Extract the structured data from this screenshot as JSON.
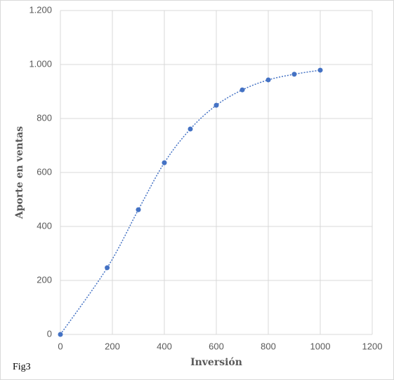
{
  "chart_data": {
    "type": "scatter",
    "caption": "Fig3",
    "x_label": "Inversión",
    "y_label": "Aporte en ventas",
    "x": [
      0,
      180,
      300,
      400,
      500,
      600,
      700,
      800,
      900,
      1000
    ],
    "series": [
      {
        "color": "#4472c4",
        "values": [
          0,
          247,
          462,
          636,
          761,
          849,
          906,
          943,
          964,
          979
        ]
      }
    ],
    "trendline": "dotted",
    "xlim": [
      0,
      1200
    ],
    "xticks": [
      0,
      200,
      400,
      600,
      800,
      1000,
      1200
    ],
    "ylim": [
      0,
      1200
    ],
    "yticks": [
      0,
      200,
      400,
      600,
      800,
      {
        "value": 1000,
        "label": "1.000"
      },
      {
        "value": 1200,
        "label": "1.200"
      }
    ],
    "grid": true
  }
}
